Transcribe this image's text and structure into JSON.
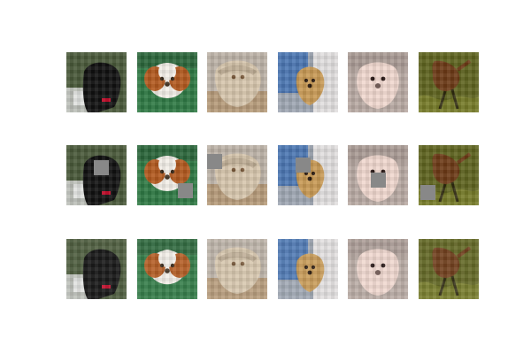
{
  "figure": {
    "rows": [
      "original",
      "occluded",
      "reconstructed"
    ],
    "columns": [
      "black-dog",
      "cavalier-dog",
      "fluffy-dog",
      "golden-puppy",
      "white-puppy",
      "deer"
    ],
    "occlusion_patch_color": "#888888",
    "tiles": [
      {
        "subject": "black-dog",
        "bg": "#4a5a3a",
        "main": "#111111",
        "accent": "#c8102e",
        "extra": "#d8d8d8"
      },
      {
        "subject": "cavalier-dog",
        "bg": "#2f7a45",
        "main": "#f2eee8",
        "accent": "#b35a1f",
        "extra": "#3a2a1a"
      },
      {
        "subject": "fluffy-dog",
        "bg": "#bdb3a8",
        "main": "#d7c6ad",
        "accent": "#8d7a63",
        "extra": "#7a5a3b"
      },
      {
        "subject": "golden-puppy",
        "bg": "#9fa7b3",
        "main": "#c89a55",
        "accent": "#3d6fb3",
        "extra": "#e9e6e3"
      },
      {
        "subject": "white-puppy",
        "bg": "#b8aaa3",
        "main": "#f0d8cf",
        "accent": "#6d5550",
        "extra": "#9a8a84"
      },
      {
        "subject": "deer",
        "bg": "#5f6420",
        "main": "#6d3a16",
        "accent": "#a2a53a",
        "extra": "#2f2a10"
      }
    ]
  }
}
